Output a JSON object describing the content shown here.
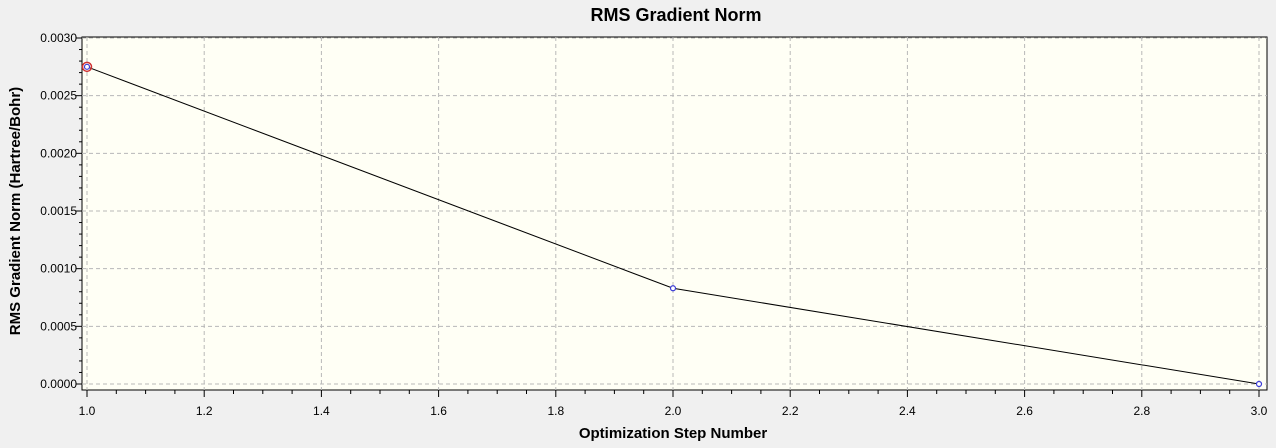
{
  "chart_data": {
    "type": "line",
    "title": "RMS Gradient Norm",
    "xlabel": "Optimization Step Number",
    "ylabel": "RMS Gradient Norm (Hartree/Bohr)",
    "xlim": [
      1.0,
      3.0
    ],
    "ylim": [
      0.0,
      0.003
    ],
    "x_ticks": [
      "1.0",
      "1.2",
      "1.4",
      "1.6",
      "1.8",
      "2.0",
      "2.2",
      "2.4",
      "2.6",
      "2.8",
      "3.0"
    ],
    "y_ticks": [
      "0.0000",
      "0.0005",
      "0.0010",
      "0.0015",
      "0.0020",
      "0.0025",
      "0.0030"
    ],
    "grid": true,
    "series": [
      {
        "x": [
          1,
          2,
          3
        ],
        "y": [
          0.00275,
          0.00083,
          0.0
        ]
      }
    ],
    "highlighted_point": {
      "x": 1,
      "y": 0.00275
    },
    "colors": {
      "line": "#000000",
      "marker": "#3b3bd6",
      "highlight": "#d03030",
      "plot_background": "#fffff5",
      "grid": "#b8b8b8",
      "window_background": "#f0f0f0"
    }
  }
}
